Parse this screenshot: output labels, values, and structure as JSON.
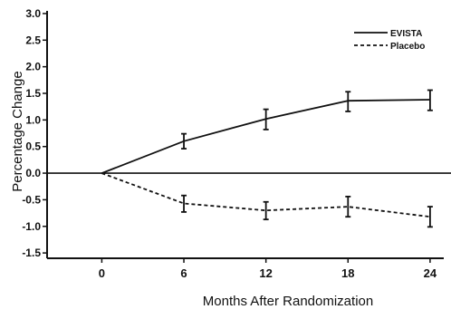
{
  "chart_data": {
    "type": "line",
    "title": "",
    "xlabel": "Months After Randomization",
    "ylabel": "Percentage Change",
    "xlim": [
      -4,
      25
    ],
    "ylim": [
      -1.6,
      3.05
    ],
    "xticks": [
      "0",
      "6",
      "12",
      "18",
      "24"
    ],
    "yticks": [
      "3.0",
      "2.5",
      "2.0",
      "1.5",
      "1.0",
      "0.5",
      "0.0",
      "-0.5",
      "-1.0",
      "-1.5"
    ],
    "grid": false,
    "reference_line_y": 0.0,
    "legend_position": "top-right",
    "x": [
      0,
      6,
      12,
      18,
      24
    ],
    "series": [
      {
        "name": "EVISTA",
        "style": "solid",
        "values": [
          0.0,
          0.6,
          1.02,
          1.36,
          1.38
        ],
        "error_low": [
          null,
          0.46,
          0.82,
          1.16,
          1.18
        ],
        "error_high": [
          null,
          0.74,
          1.2,
          1.53,
          1.56
        ]
      },
      {
        "name": "Placebo",
        "style": "dashed",
        "values": [
          0.0,
          -0.57,
          -0.7,
          -0.63,
          -0.82
        ],
        "error_low": [
          null,
          -0.73,
          -0.87,
          -0.82,
          -1.01
        ],
        "error_high": [
          null,
          -0.42,
          -0.54,
          -0.44,
          -0.63
        ]
      }
    ],
    "colors": {
      "line": "#111111",
      "background": "#ffffff"
    }
  }
}
